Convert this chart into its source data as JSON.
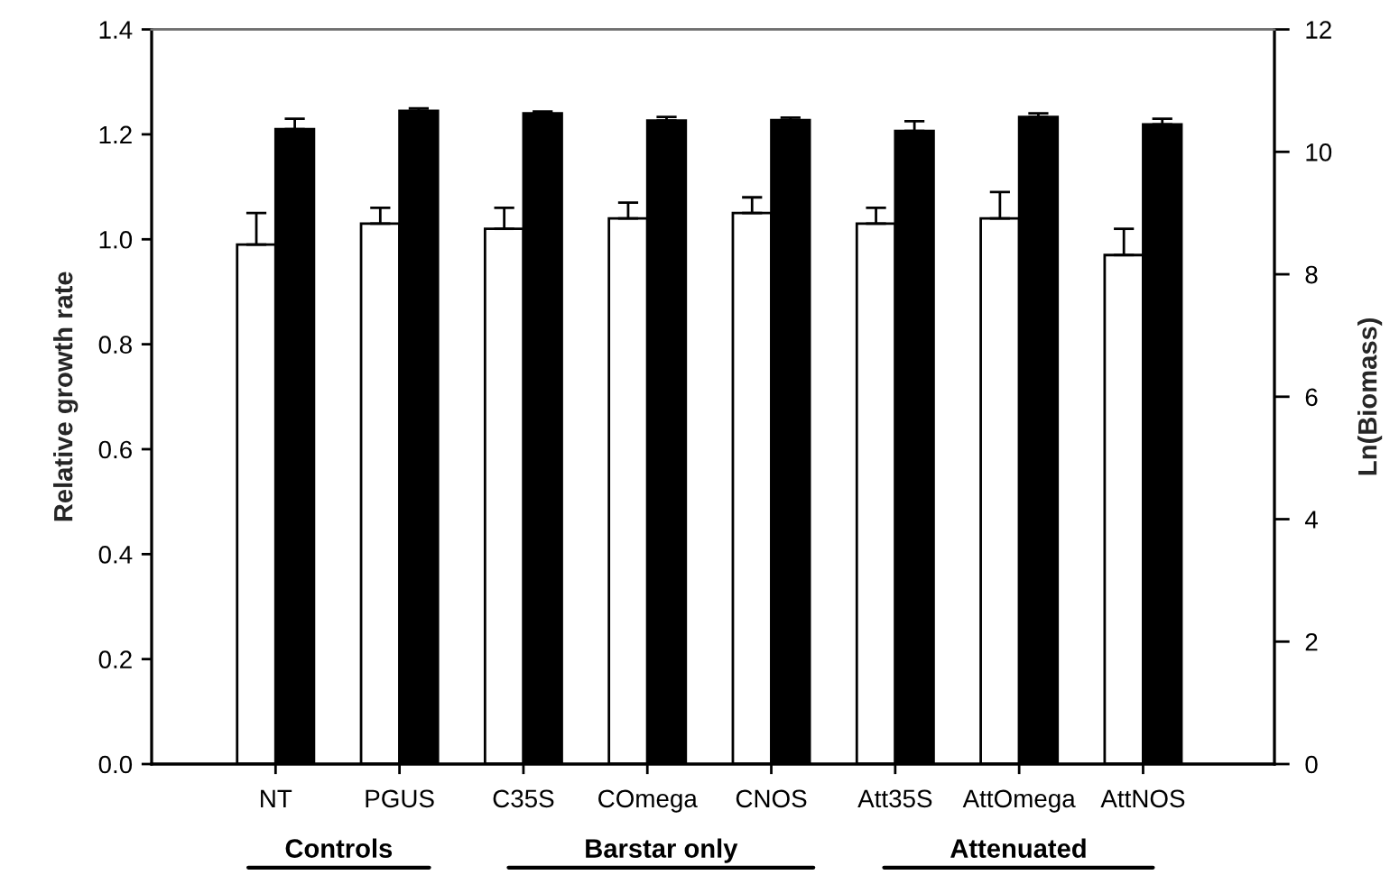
{
  "chart_data": {
    "type": "bar",
    "ylabel": "Relative growth rate",
    "y2label": "Ln(Biomass)",
    "categories": [
      "NT",
      "PGUS",
      "C35S",
      "COmega",
      "CNOS",
      "Att35S",
      "AttOmega",
      "AttNOS"
    ],
    "series": [
      {
        "color": "#ffffff",
        "values": [
          0.99,
          1.03,
          1.02,
          1.04,
          1.05,
          1.03,
          1.04,
          0.97
        ],
        "errors": [
          [
            0.99,
            1.05
          ],
          [
            1.03,
            1.06
          ],
          [
            1.02,
            1.06
          ],
          [
            1.04,
            1.07
          ],
          [
            1.05,
            1.08
          ],
          [
            1.03,
            1.06
          ],
          [
            1.04,
            1.09
          ],
          [
            0.97,
            1.02
          ]
        ]
      },
      {
        "color": "#000000",
        "axis": "y2",
        "values": [
          10.37,
          10.67,
          10.63,
          10.51,
          10.52,
          10.34,
          10.57,
          10.45
        ],
        "errors": [
          [
            10.37,
            10.54
          ],
          [
            10.67,
            10.71
          ],
          [
            10.63,
            10.66
          ],
          [
            10.51,
            10.57
          ],
          [
            10.52,
            10.56
          ],
          [
            10.34,
            10.5
          ],
          [
            10.57,
            10.63
          ],
          [
            10.45,
            10.54
          ]
        ]
      }
    ],
    "ylim": [
      0,
      1.4
    ],
    "yticks": [
      {
        "value": 0,
        "label": "0.0"
      },
      0.2,
      0.4,
      0.6,
      0.8,
      {
        "value": 1,
        "label": "1.0"
      },
      1.2,
      1.4
    ],
    "y2lim": [
      0,
      12
    ],
    "y2ticks": [
      0,
      2,
      4,
      6,
      8,
      10,
      12
    ],
    "annotations": [
      "Controls",
      "Barstar only",
      "Attenuated"
    ],
    "grid": false
  }
}
